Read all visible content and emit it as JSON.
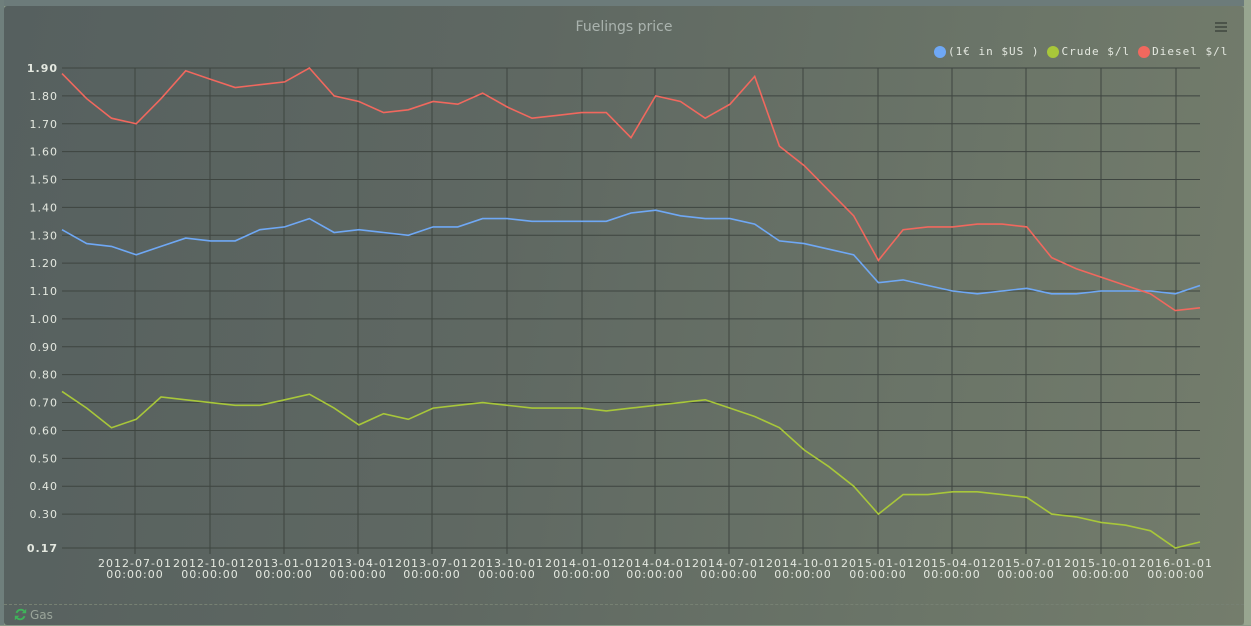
{
  "panel": {
    "title": "Fuelings price",
    "menu_icon": "hamburger-menu-icon",
    "footer_label": "Gas",
    "footer_icon": "refresh-icon"
  },
  "legend": [
    {
      "label": "(1€ in $US )",
      "color": "#6fa8f5"
    },
    {
      "label": "Crude $/l",
      "color": "#a8c73a"
    },
    {
      "label": "Diesel $/l",
      "color": "#f1685e"
    }
  ],
  "chart_data": {
    "type": "line",
    "title": "Fuelings price",
    "xlabel": "",
    "ylabel": "",
    "ylim": [
      0.17,
      1.9
    ],
    "yticks": [
      "1.90",
      "1.80",
      "1.70",
      "1.60",
      "1.50",
      "1.40",
      "1.30",
      "1.20",
      "1.10",
      "1.00",
      "0.90",
      "0.80",
      "0.70",
      "0.60",
      "0.50",
      "0.40",
      "0.30",
      "0.17"
    ],
    "xticks": [
      {
        "date": "2012-07-01",
        "time": "00:00:00"
      },
      {
        "date": "2012-10-01",
        "time": "00:00:00"
      },
      {
        "date": "2013-01-01",
        "time": "00:00:00"
      },
      {
        "date": "2013-04-01",
        "time": "00:00:00"
      },
      {
        "date": "2013-07-01",
        "time": "00:00:00"
      },
      {
        "date": "2013-10-01",
        "time": "00:00:00"
      },
      {
        "date": "2014-01-01",
        "time": "00:00:00"
      },
      {
        "date": "2014-04-01",
        "time": "00:00:00"
      },
      {
        "date": "2014-07-01",
        "time": "00:00:00"
      },
      {
        "date": "2014-10-01",
        "time": "00:00:00"
      },
      {
        "date": "2015-01-01",
        "time": "00:00:00"
      },
      {
        "date": "2015-04-01",
        "time": "00:00:00"
      },
      {
        "date": "2015-07-01",
        "time": "00:00:00"
      },
      {
        "date": "2015-10-01",
        "time": "00:00:00"
      },
      {
        "date": "2016-01-01",
        "time": "00:00:00"
      }
    ],
    "grid": true,
    "legend_position": "top-right",
    "x": [
      "2012-04",
      "2012-05",
      "2012-06",
      "2012-07",
      "2012-08",
      "2012-09",
      "2012-10",
      "2012-11",
      "2012-12",
      "2013-01",
      "2013-02",
      "2013-03",
      "2013-04",
      "2013-05",
      "2013-06",
      "2013-07",
      "2013-08",
      "2013-09",
      "2013-10",
      "2013-11",
      "2013-12",
      "2014-01",
      "2014-02",
      "2014-03",
      "2014-04",
      "2014-05",
      "2014-06",
      "2014-07",
      "2014-08",
      "2014-09",
      "2014-10",
      "2014-11",
      "2014-12",
      "2015-01",
      "2015-02",
      "2015-03",
      "2015-04",
      "2015-05",
      "2015-06",
      "2015-07",
      "2015-08",
      "2015-09",
      "2015-10",
      "2015-11",
      "2015-12",
      "2016-01",
      "2016-02"
    ],
    "series": [
      {
        "name": "(1€ in $US )",
        "color": "#6fa8f5",
        "values": [
          1.32,
          1.27,
          1.26,
          1.23,
          1.26,
          1.29,
          1.28,
          1.28,
          1.32,
          1.33,
          1.36,
          1.31,
          1.32,
          1.31,
          1.3,
          1.33,
          1.33,
          1.36,
          1.36,
          1.35,
          1.35,
          1.35,
          1.35,
          1.38,
          1.39,
          1.37,
          1.36,
          1.36,
          1.34,
          1.28,
          1.27,
          1.25,
          1.23,
          1.13,
          1.14,
          1.12,
          1.1,
          1.09,
          1.1,
          1.11,
          1.09,
          1.09,
          1.1,
          1.1,
          1.1,
          1.09,
          1.12
        ]
      },
      {
        "name": "Crude $/l",
        "color": "#a8c73a",
        "values": [
          0.74,
          0.68,
          0.61,
          0.64,
          0.72,
          0.71,
          0.7,
          0.69,
          0.69,
          0.71,
          0.73,
          0.68,
          0.62,
          0.66,
          0.64,
          0.68,
          0.69,
          0.7,
          0.69,
          0.68,
          0.68,
          0.68,
          0.67,
          0.68,
          0.69,
          0.7,
          0.71,
          0.68,
          0.65,
          0.61,
          0.53,
          0.47,
          0.4,
          0.3,
          0.37,
          0.37,
          0.38,
          0.38,
          0.37,
          0.36,
          0.3,
          0.29,
          0.27,
          0.26,
          0.24,
          0.17,
          0.2
        ]
      },
      {
        "name": "Diesel $/l",
        "color": "#f1685e",
        "values": [
          1.88,
          1.79,
          1.72,
          1.7,
          1.79,
          1.89,
          1.86,
          1.83,
          1.84,
          1.85,
          1.9,
          1.8,
          1.78,
          1.74,
          1.75,
          1.78,
          1.77,
          1.81,
          1.76,
          1.72,
          1.73,
          1.74,
          1.74,
          1.65,
          1.8,
          1.78,
          1.72,
          1.77,
          1.87,
          1.62,
          1.55,
          1.46,
          1.37,
          1.21,
          1.32,
          1.33,
          1.33,
          1.34,
          1.34,
          1.33,
          1.22,
          1.18,
          1.15,
          1.12,
          1.09,
          1.03,
          1.04
        ]
      }
    ]
  }
}
